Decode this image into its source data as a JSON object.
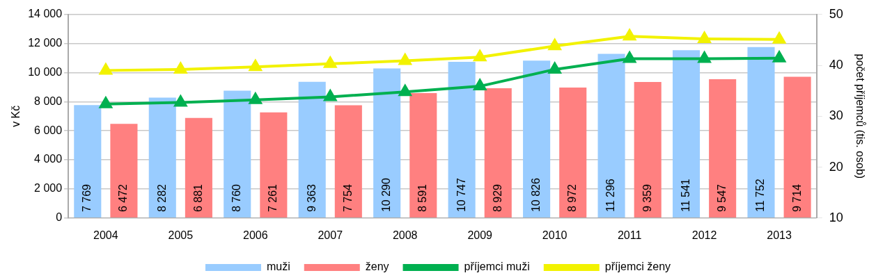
{
  "chart_data": {
    "type": "bar",
    "ylabel": "v Kč",
    "y2label": "počet příjemců (tis. osob)",
    "categories": [
      "2004",
      "2005",
      "2006",
      "2007",
      "2008",
      "2009",
      "2010",
      "2011",
      "2012",
      "2013"
    ],
    "series": [
      {
        "name": "muži",
        "color": "#99ccff",
        "values": [
          7769,
          8282,
          8760,
          9363,
          10290,
          10747,
          10826,
          11296,
          11541,
          11752
        ],
        "value_labels": [
          "7 769",
          "8 282",
          "8 760",
          "9 363",
          "10 290",
          "10 747",
          "10 826",
          "11 296",
          "11 541",
          "11 752"
        ]
      },
      {
        "name": "ženy",
        "color": "#ff8080",
        "values": [
          6472,
          6881,
          7261,
          7754,
          8591,
          8929,
          8972,
          9359,
          9547,
          9714
        ],
        "value_labels": [
          "6 472",
          "6 881",
          "7 261",
          "7 754",
          "8 591",
          "8 929",
          "8 972",
          "9 359",
          "9 547",
          "9 714"
        ]
      },
      {
        "name": "příjemci muži",
        "type": "line",
        "axis": "y2",
        "color": "#00b050",
        "values": [
          32.4,
          32.7,
          33.2,
          33.8,
          34.8,
          35.9,
          39.2,
          41.3,
          41.3,
          41.4
        ]
      },
      {
        "name": "příjemci ženy",
        "type": "line",
        "axis": "y2",
        "color": "#f2f200",
        "values": [
          39.0,
          39.2,
          39.7,
          40.3,
          40.9,
          41.6,
          43.8,
          45.7,
          45.2,
          45.1
        ]
      }
    ],
    "ylim": [
      0,
      14000
    ],
    "yticks": [
      {
        "value": 0,
        "label": "0"
      },
      {
        "value": 2000,
        "label": "2 000"
      },
      {
        "value": 4000,
        "label": "4 000"
      },
      {
        "value": 6000,
        "label": "6 000"
      },
      {
        "value": 8000,
        "label": "8 000"
      },
      {
        "value": 10000,
        "label": "10 000"
      },
      {
        "value": 12000,
        "label": "12 000"
      },
      {
        "value": 14000,
        "label": "14 000"
      }
    ],
    "y2lim": [
      10,
      50
    ],
    "y2ticks": [
      10,
      20,
      30,
      40,
      50
    ],
    "grid": "y",
    "legend": "bottom",
    "marker": "triangle",
    "line_style": "solid"
  }
}
